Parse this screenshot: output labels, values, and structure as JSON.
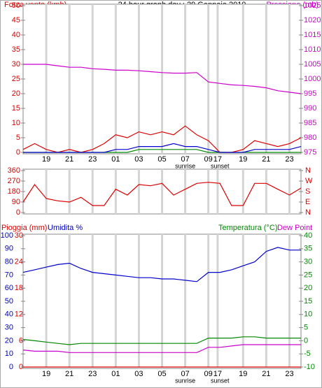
{
  "chart_data": [
    {
      "type": "line",
      "title": "24 hour graph day : 29 Gennaio 2010",
      "ylabel": "Forza vento (kmh)",
      "ycolor": "#dd0000",
      "y2label": "Pressione (mb)",
      "y2color": "#cc00cc",
      "x": [
        0,
        1,
        2,
        3,
        4,
        5,
        6,
        7,
        8,
        9,
        10,
        11,
        12,
        13,
        14,
        15,
        16,
        17,
        18,
        19,
        20,
        21,
        22,
        23,
        24
      ],
      "xlim": [
        0,
        24
      ],
      "xticks": [
        {
          "value": 2,
          "label": "19"
        },
        {
          "value": 4,
          "label": "21"
        },
        {
          "value": 6,
          "label": "23"
        },
        {
          "value": 8,
          "label": "01"
        },
        {
          "value": 10,
          "label": "03"
        },
        {
          "value": 12,
          "label": "05"
        },
        {
          "value": 14,
          "label": "07"
        },
        {
          "value": 16,
          "label": "09"
        },
        {
          "value": 16.8,
          "label": "17"
        },
        {
          "value": 19,
          "label": "19"
        },
        {
          "value": 21,
          "label": "21"
        },
        {
          "value": 23,
          "label": "23"
        }
      ],
      "annotations": [
        {
          "text": "sunrise",
          "x": 14
        },
        {
          "text": "sunset",
          "x": 17
        }
      ],
      "ylim": [
        0,
        50
      ],
      "yticks": [
        0,
        5,
        10,
        15,
        20,
        25,
        30,
        35,
        40,
        45,
        50
      ],
      "y2lim": [
        975,
        1025
      ],
      "y2ticks": [
        975,
        980,
        985,
        990,
        995,
        1000,
        1005,
        1010,
        1015,
        1020,
        1025
      ],
      "series": [
        {
          "color": "#dd0000",
          "values": [
            1,
            3,
            1,
            0,
            1,
            0,
            1,
            3,
            6,
            5,
            7,
            6,
            7,
            6,
            9,
            6,
            4,
            0,
            0,
            1,
            4,
            3,
            2,
            3,
            5
          ]
        },
        {
          "color": "#008800",
          "values": [
            0,
            0,
            0,
            0,
            0,
            0,
            0,
            0,
            0,
            0,
            1,
            1,
            1,
            1,
            1,
            1,
            0,
            0,
            0,
            0,
            0,
            0,
            0,
            0,
            0
          ]
        },
        {
          "color": "#0000cc",
          "values": [
            0,
            0,
            0,
            0,
            0,
            0,
            0,
            0,
            1,
            1,
            2,
            2,
            2,
            3,
            2,
            2,
            1,
            0,
            0,
            0,
            1,
            1,
            1,
            1,
            2
          ]
        },
        {
          "color": "#cc00cc",
          "axis": "y2",
          "values": [
            1005,
            1005,
            1005,
            1004.5,
            1004,
            1004,
            1003.5,
            1003.3,
            1003,
            1003,
            1002.8,
            1002.5,
            1002.2,
            1002,
            1002,
            1002.2,
            999,
            998.5,
            998,
            997.8,
            997.5,
            997,
            996,
            995.5,
            995
          ]
        }
      ]
    },
    {
      "type": "line",
      "x": [
        0,
        1,
        2,
        3,
        4,
        5,
        6,
        7,
        8,
        9,
        10,
        11,
        12,
        13,
        14,
        15,
        16,
        17,
        18,
        19,
        20,
        21,
        22,
        23,
        24
      ],
      "xlim": [
        0,
        24
      ],
      "xticks": [
        2,
        4,
        6,
        8,
        10,
        12,
        14,
        16,
        16.8,
        19,
        21,
        23
      ],
      "ylim": [
        0,
        360
      ],
      "yticks": [
        0,
        90,
        180,
        270,
        360
      ],
      "ycolor": "#dd0000",
      "y2lim": [
        0,
        360
      ],
      "y2ticks": [
        {
          "value": 0,
          "label": "N"
        },
        {
          "value": 90,
          "label": "E"
        },
        {
          "value": 180,
          "label": "S"
        },
        {
          "value": 270,
          "label": "W"
        },
        {
          "value": 360,
          "label": "N"
        }
      ],
      "y2color": "#dd0000",
      "series": [
        {
          "color": "#dd0000",
          "values": [
            90,
            240,
            120,
            100,
            90,
            130,
            60,
            60,
            200,
            150,
            240,
            230,
            250,
            150,
            200,
            250,
            260,
            250,
            60,
            60,
            250,
            250,
            200,
            150,
            210
          ]
        }
      ]
    },
    {
      "type": "line",
      "ylabel": "Pioggia (mm)",
      "ycolor": "#dd0000",
      "y3label": "Umidita %",
      "y3color": "#0000cc",
      "y2label": "Temperatura (°C)",
      "y2color": "#008800",
      "y2label2": "Dew Point",
      "y2color2": "#cc00cc",
      "x": [
        0,
        1,
        2,
        3,
        4,
        5,
        6,
        7,
        8,
        9,
        10,
        11,
        12,
        13,
        14,
        15,
        16,
        17,
        18,
        19,
        20,
        21,
        22,
        23,
        24
      ],
      "xlim": [
        0,
        24
      ],
      "xticks": [
        {
          "value": 2,
          "label": "19"
        },
        {
          "value": 4,
          "label": "21"
        },
        {
          "value": 6,
          "label": "23"
        },
        {
          "value": 8,
          "label": "01"
        },
        {
          "value": 10,
          "label": "03"
        },
        {
          "value": 12,
          "label": "05"
        },
        {
          "value": 14,
          "label": "07"
        },
        {
          "value": 16,
          "label": "09"
        },
        {
          "value": 16.8,
          "label": "17"
        },
        {
          "value": 19,
          "label": "19"
        },
        {
          "value": 21,
          "label": "21"
        },
        {
          "value": 23,
          "label": "23"
        }
      ],
      "annotations": [
        {
          "text": "sunrise",
          "x": 14
        },
        {
          "text": "sunset",
          "x": 17
        }
      ],
      "ylim": [
        0,
        30
      ],
      "yticks": [
        0,
        6,
        12,
        18,
        24,
        30
      ],
      "y3lim": [
        0,
        100
      ],
      "y3ticks": [
        0,
        10,
        20,
        30,
        40,
        50,
        60,
        70,
        80,
        90,
        100
      ],
      "y2lim": [
        -10,
        40
      ],
      "y2ticks": [
        -10,
        -5,
        0,
        5,
        10,
        15,
        20,
        25,
        30,
        35,
        40
      ],
      "series": [
        {
          "color": "#dd0000",
          "values": [
            0,
            0,
            0,
            0,
            0,
            0,
            0,
            0,
            0,
            0,
            0,
            0,
            0,
            0,
            0,
            0,
            0,
            0,
            0,
            0,
            0,
            0,
            0,
            0,
            0
          ]
        },
        {
          "color": "#0000cc",
          "axis": "y3",
          "values": [
            72,
            74,
            76,
            78,
            79,
            75,
            72,
            71,
            70,
            69,
            68,
            68,
            67,
            67,
            66,
            65,
            72,
            72,
            74,
            77,
            80,
            88,
            91,
            89,
            89
          ]
        },
        {
          "color": "#008800",
          "axis": "y2",
          "values": [
            0.5,
            0,
            -0.5,
            -1,
            -1.5,
            -1,
            -1,
            -1,
            -1,
            -1,
            -1,
            -1,
            -1,
            -1,
            -1,
            -1,
            1,
            1,
            1,
            1.5,
            1.5,
            1,
            1,
            1,
            1
          ]
        },
        {
          "color": "#cc00cc",
          "axis": "y2",
          "values": [
            -3.5,
            -4,
            -4,
            -4,
            -4.5,
            -4.5,
            -4.5,
            -4.5,
            -4.5,
            -4.5,
            -4.5,
            -4.5,
            -4.5,
            -4.5,
            -4.5,
            -4.5,
            -2.5,
            -2.5,
            -2,
            -1.5,
            -1.5,
            -1.5,
            -1.5,
            -1.5,
            -1.5
          ]
        }
      ]
    }
  ]
}
